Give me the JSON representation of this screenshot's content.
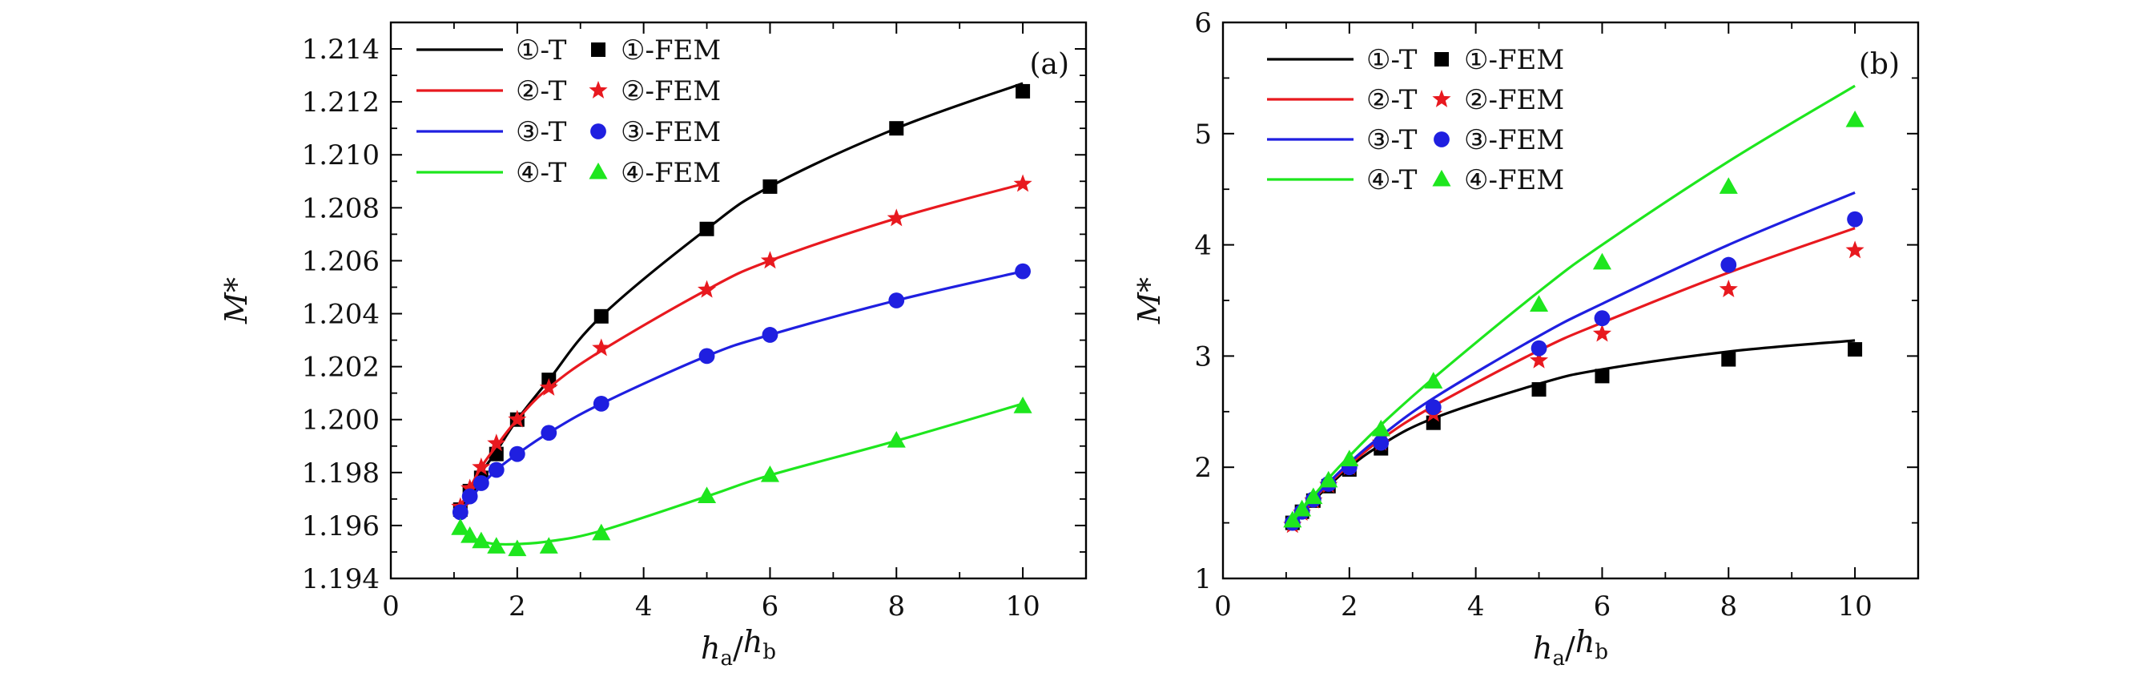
{
  "chart_data": [
    {
      "type": "line",
      "panel_tag": "(a)",
      "ylabel": "M*",
      "xlabel": {
        "h": "h",
        "a": "a",
        "b": "b",
        "slash": "/"
      },
      "xlim": [
        0,
        11
      ],
      "ylim": [
        1.194,
        1.215
      ],
      "xticks": [
        0,
        2,
        4,
        6,
        8,
        10
      ],
      "yticks": [
        1.194,
        1.196,
        1.198,
        1.2,
        1.202,
        1.204,
        1.206,
        1.208,
        1.21,
        1.212,
        1.214
      ],
      "ytick_labels": [
        "1.194",
        "1.196",
        "1.198",
        "1.200",
        "1.202",
        "1.204",
        "1.206",
        "1.208",
        "1.210",
        "1.212",
        "1.214"
      ],
      "xtick_labels": [
        "0",
        "2",
        "4",
        "6",
        "8",
        "10"
      ],
      "series": [
        {
          "name": "①-T",
          "kind": "line",
          "color": "#000000",
          "x": [
            1.1,
            1.25,
            1.43,
            1.67,
            2,
            2.5,
            3.33,
            5,
            6,
            8,
            10
          ],
          "y": [
            1.1966,
            1.1973,
            1.198,
            1.1988,
            1.2,
            1.2015,
            1.2039,
            1.2072,
            1.2088,
            1.211,
            1.2127
          ]
        },
        {
          "name": "①-FEM",
          "kind": "marker",
          "marker": "square",
          "color": "#000000",
          "x": [
            1.1,
            1.25,
            1.43,
            1.67,
            2,
            2.5,
            3.33,
            5,
            6,
            8,
            10
          ],
          "y": [
            1.1966,
            1.1973,
            1.1978,
            1.1987,
            1.2,
            1.2015,
            1.2039,
            1.2072,
            1.2088,
            1.211,
            1.2124
          ]
        },
        {
          "name": "②-T",
          "kind": "line",
          "color": "#e8191f",
          "x": [
            1.1,
            1.25,
            1.43,
            1.67,
            2,
            2.5,
            3.33,
            5,
            6,
            8,
            10
          ],
          "y": [
            1.1967,
            1.1974,
            1.1982,
            1.199,
            1.2,
            1.2012,
            1.2026,
            1.2049,
            1.206,
            1.2076,
            1.2089
          ]
        },
        {
          "name": "②-FEM",
          "kind": "marker",
          "marker": "star",
          "color": "#e8191f",
          "x": [
            1.1,
            1.25,
            1.43,
            1.67,
            2,
            2.5,
            3.33,
            5,
            6,
            8,
            10
          ],
          "y": [
            1.1967,
            1.1974,
            1.1982,
            1.1991,
            1.2,
            1.2012,
            1.2027,
            1.2049,
            1.206,
            1.2076,
            1.2089
          ]
        },
        {
          "name": "③-T",
          "kind": "line",
          "color": "#1f1fe0",
          "x": [
            1.1,
            1.25,
            1.43,
            1.67,
            2,
            2.5,
            3.33,
            5,
            6,
            8,
            10
          ],
          "y": [
            1.1965,
            1.197,
            1.1975,
            1.1981,
            1.1987,
            1.1995,
            1.2006,
            1.2024,
            1.2032,
            1.2045,
            1.2056
          ]
        },
        {
          "name": "③-FEM",
          "kind": "marker",
          "marker": "circle",
          "color": "#1f1fe0",
          "x": [
            1.1,
            1.25,
            1.43,
            1.67,
            2,
            2.5,
            3.33,
            5,
            6,
            8,
            10
          ],
          "y": [
            1.1965,
            1.1971,
            1.1976,
            1.1981,
            1.1987,
            1.1995,
            1.2006,
            1.2024,
            1.2032,
            1.2045,
            1.2056
          ]
        },
        {
          "name": "④-T",
          "kind": "line",
          "color": "#1ee61e",
          "x": [
            1.1,
            1.25,
            1.43,
            1.67,
            2,
            2.5,
            3.33,
            5,
            6,
            8,
            10
          ],
          "y": [
            1.1959,
            1.1956,
            1.1954,
            1.1953,
            1.1953,
            1.1954,
            1.1958,
            1.1971,
            1.1979,
            1.1992,
            1.2006
          ]
        },
        {
          "name": "④-FEM",
          "kind": "marker",
          "marker": "triangle",
          "color": "#1ee61e",
          "x": [
            1.1,
            1.25,
            1.43,
            1.67,
            2,
            2.5,
            3.33,
            5,
            6,
            8,
            10
          ],
          "y": [
            1.1959,
            1.1956,
            1.1954,
            1.1952,
            1.1951,
            1.1952,
            1.1957,
            1.1971,
            1.1979,
            1.1992,
            1.2005
          ]
        }
      ],
      "legend": {
        "placement": "top-left",
        "rows": [
          {
            "line_label": "①-T",
            "marker_label": "①-FEM",
            "color": "#000000",
            "marker": "square"
          },
          {
            "line_label": "②-T",
            "marker_label": "②-FEM",
            "color": "#e8191f",
            "marker": "star"
          },
          {
            "line_label": "③-T",
            "marker_label": "③-FEM",
            "color": "#1f1fe0",
            "marker": "circle"
          },
          {
            "line_label": "④-T",
            "marker_label": "④-FEM",
            "color": "#1ee61e",
            "marker": "triangle"
          }
        ]
      }
    },
    {
      "type": "line",
      "panel_tag": "(b)",
      "ylabel": "M*",
      "xlabel": {
        "h": "h",
        "a": "a",
        "b": "b",
        "slash": "/"
      },
      "xlim": [
        0,
        11
      ],
      "ylim": [
        1,
        6
      ],
      "xticks": [
        0,
        2,
        4,
        6,
        8,
        10
      ],
      "yticks": [
        1,
        2,
        3,
        4,
        5,
        6
      ],
      "ytick_labels": [
        "1",
        "2",
        "3",
        "4",
        "5",
        "6"
      ],
      "xtick_labels": [
        "0",
        "2",
        "4",
        "6",
        "8",
        "10"
      ],
      "series": [
        {
          "name": "①-T",
          "kind": "line",
          "color": "#000000",
          "x": [
            1.1,
            1.25,
            1.43,
            1.67,
            2,
            2.5,
            3.33,
            5,
            6,
            8,
            10
          ],
          "y": [
            1.5,
            1.6,
            1.7,
            1.83,
            2.0,
            2.2,
            2.44,
            2.75,
            2.88,
            3.04,
            3.14
          ]
        },
        {
          "name": "①-FEM",
          "kind": "marker",
          "marker": "square",
          "color": "#000000",
          "x": [
            1.1,
            1.25,
            1.43,
            1.67,
            2,
            2.5,
            3.33,
            5,
            6,
            8,
            10
          ],
          "y": [
            1.5,
            1.6,
            1.7,
            1.83,
            1.98,
            2.17,
            2.4,
            2.7,
            2.82,
            2.97,
            3.06
          ]
        },
        {
          "name": "②-T",
          "kind": "line",
          "color": "#e8191f",
          "x": [
            1.1,
            1.25,
            1.43,
            1.67,
            2,
            2.5,
            3.33,
            5,
            6,
            8,
            10
          ],
          "y": [
            1.5,
            1.6,
            1.71,
            1.85,
            2.02,
            2.25,
            2.55,
            3.05,
            3.3,
            3.75,
            4.15
          ]
        },
        {
          "name": "②-FEM",
          "kind": "marker",
          "marker": "star",
          "color": "#e8191f",
          "x": [
            1.1,
            1.25,
            1.43,
            1.67,
            2,
            2.5,
            3.33,
            5,
            6,
            8,
            10
          ],
          "y": [
            1.48,
            1.59,
            1.7,
            1.84,
            2.0,
            2.22,
            2.48,
            2.96,
            3.2,
            3.6,
            3.95
          ]
        },
        {
          "name": "③-T",
          "kind": "line",
          "color": "#1f1fe0",
          "x": [
            1.1,
            1.25,
            1.43,
            1.67,
            2,
            2.5,
            3.33,
            5,
            6,
            8,
            10
          ],
          "y": [
            1.5,
            1.61,
            1.72,
            1.86,
            2.04,
            2.28,
            2.62,
            3.18,
            3.47,
            4.0,
            4.47
          ]
        },
        {
          "name": "③-FEM",
          "kind": "marker",
          "marker": "circle",
          "color": "#1f1fe0",
          "x": [
            1.1,
            1.25,
            1.43,
            1.67,
            2,
            2.5,
            3.33,
            5,
            6,
            8,
            10
          ],
          "y": [
            1.5,
            1.6,
            1.71,
            1.85,
            2.0,
            2.22,
            2.54,
            3.07,
            3.34,
            3.82,
            4.23
          ]
        },
        {
          "name": "④-T",
          "kind": "line",
          "color": "#1ee61e",
          "x": [
            1.1,
            1.25,
            1.43,
            1.67,
            2,
            2.5,
            3.33,
            5,
            6,
            8,
            10
          ],
          "y": [
            1.51,
            1.62,
            1.74,
            1.9,
            2.1,
            2.38,
            2.8,
            3.58,
            4.0,
            4.75,
            5.43
          ]
        },
        {
          "name": "④-FEM",
          "kind": "marker",
          "marker": "triangle",
          "color": "#1ee61e",
          "x": [
            1.1,
            1.25,
            1.43,
            1.67,
            2,
            2.5,
            3.33,
            5,
            6,
            8,
            10
          ],
          "y": [
            1.52,
            1.62,
            1.73,
            1.88,
            2.07,
            2.34,
            2.77,
            3.46,
            3.84,
            4.52,
            5.12
          ]
        }
      ],
      "legend": {
        "placement": "top-left",
        "rows": [
          {
            "line_label": "①-T",
            "marker_label": "①-FEM",
            "color": "#000000",
            "marker": "square"
          },
          {
            "line_label": "②-T",
            "marker_label": "②-FEM",
            "color": "#e8191f",
            "marker": "star"
          },
          {
            "line_label": "③-T",
            "marker_label": "③-FEM",
            "color": "#1f1fe0",
            "marker": "circle"
          },
          {
            "line_label": "④-T",
            "marker_label": "④-FEM",
            "color": "#1ee61e",
            "marker": "triangle"
          }
        ]
      }
    }
  ]
}
